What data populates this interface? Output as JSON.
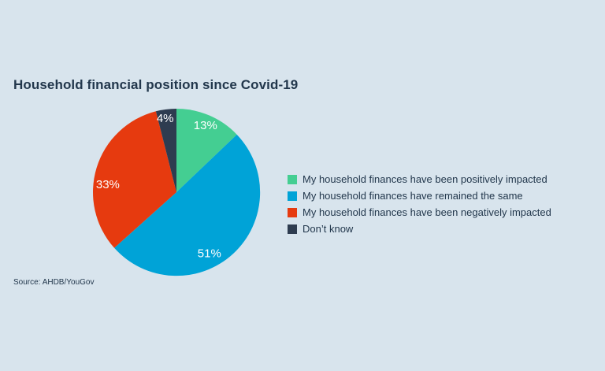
{
  "page": {
    "background_color": "#D8E4ED",
    "text_color": "#22374C"
  },
  "header": {
    "title": "Household financial position since Covid-19"
  },
  "footer": {
    "source": "Source: AHDB/YouGov"
  },
  "chart_data": {
    "type": "pie",
    "title": "Household financial position since Covid-19",
    "categories": [
      "My household finances have been positively impacted",
      "My household finances have remained the same",
      "My household finances have been negatively impacted",
      "Don’t know"
    ],
    "values": [
      13,
      51,
      33,
      4
    ],
    "slice_labels": [
      "13%",
      "51%",
      "33%",
      "4%"
    ],
    "colors": [
      "#44CE92",
      "#00A3D7",
      "#E63A0F",
      "#2E3C50"
    ],
    "slice_label_color": "#FFFFFF",
    "start_angle_deg": 0,
    "direction": "clockwise",
    "legend_position": "right",
    "source": "Source: AHDB/YouGov"
  }
}
